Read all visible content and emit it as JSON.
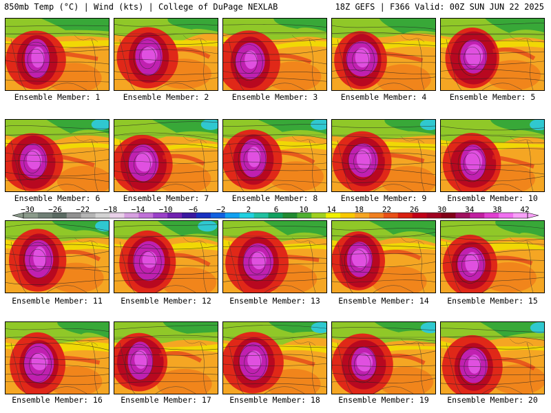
{
  "header": {
    "left": "850mb Temp (°C) | Wind (kts) | College of DuPage NEXLAB",
    "right": "18Z GEFS | F366 Valid: 00Z SUN JUN 22 2025"
  },
  "members": [
    {
      "label": "Ensemble Member: 1",
      "id": 1
    },
    {
      "label": "Ensemble Member: 2",
      "id": 2
    },
    {
      "label": "Ensemble Member: 3",
      "id": 3
    },
    {
      "label": "Ensemble Member: 4",
      "id": 4
    },
    {
      "label": "Ensemble Member: 5",
      "id": 5
    },
    {
      "label": "Ensemble Member: 6",
      "id": 6
    },
    {
      "label": "Ensemble Member: 7",
      "id": 7
    },
    {
      "label": "Ensemble Member: 8",
      "id": 8
    },
    {
      "label": "Ensemble Member: 9",
      "id": 9
    },
    {
      "label": "Ensemble Member: 10",
      "id": 10
    },
    {
      "label": "Ensemble Member: 11",
      "id": 11
    },
    {
      "label": "Ensemble Member: 12",
      "id": 12
    },
    {
      "label": "Ensemble Member: 13",
      "id": 13
    },
    {
      "label": "Ensemble Member: 14",
      "id": 14
    },
    {
      "label": "Ensemble Member: 15",
      "id": 15
    },
    {
      "label": "Ensemble Member: 16",
      "id": 16
    },
    {
      "label": "Ensemble Member: 17",
      "id": 17
    },
    {
      "label": "Ensemble Member: 18",
      "id": 18
    },
    {
      "label": "Ensemble Member: 19",
      "id": 19
    },
    {
      "label": "Ensemble Member: 20",
      "id": 20
    }
  ],
  "colorbar": {
    "labels": [
      "-30",
      "-26",
      "-22",
      "-18",
      "-14",
      "-10",
      "-6",
      "-2",
      "2",
      "6",
      "10",
      "14",
      "18",
      "22",
      "26",
      "30",
      "34",
      "38",
      "42"
    ],
    "colors": [
      "#8a9a8a",
      "#6f7f75",
      "#5a6a62",
      "#909090",
      "#b4b4b4",
      "#d2d2d2",
      "#e8d0e8",
      "#d6a0e0",
      "#c070d8",
      "#9a40c8",
      "#7020b0",
      "#3a18a0",
      "#1830c0",
      "#1060e0",
      "#10a0f0",
      "#20d0e0",
      "#20c0a0",
      "#10a060",
      "#208a30",
      "#50b030",
      "#a0d020",
      "#f0f000",
      "#f8c800",
      "#f5a623",
      "#f08020",
      "#e85018",
      "#d82010",
      "#c00018",
      "#a00020",
      "#800018",
      "#a01060",
      "#c020a0",
      "#e040d0",
      "#f070f0",
      "#f8a0f8"
    ],
    "temp_colors": {
      "cold_teal": "#30c8d0",
      "green": "#38a838",
      "light_green": "#90c828",
      "yellow": "#f0e000",
      "orange": "#f5a623",
      "dark_orange": "#f07818",
      "red": "#e02818",
      "dark_red": "#b80820",
      "magenta": "#c020b0",
      "pink": "#e050e0"
    }
  }
}
